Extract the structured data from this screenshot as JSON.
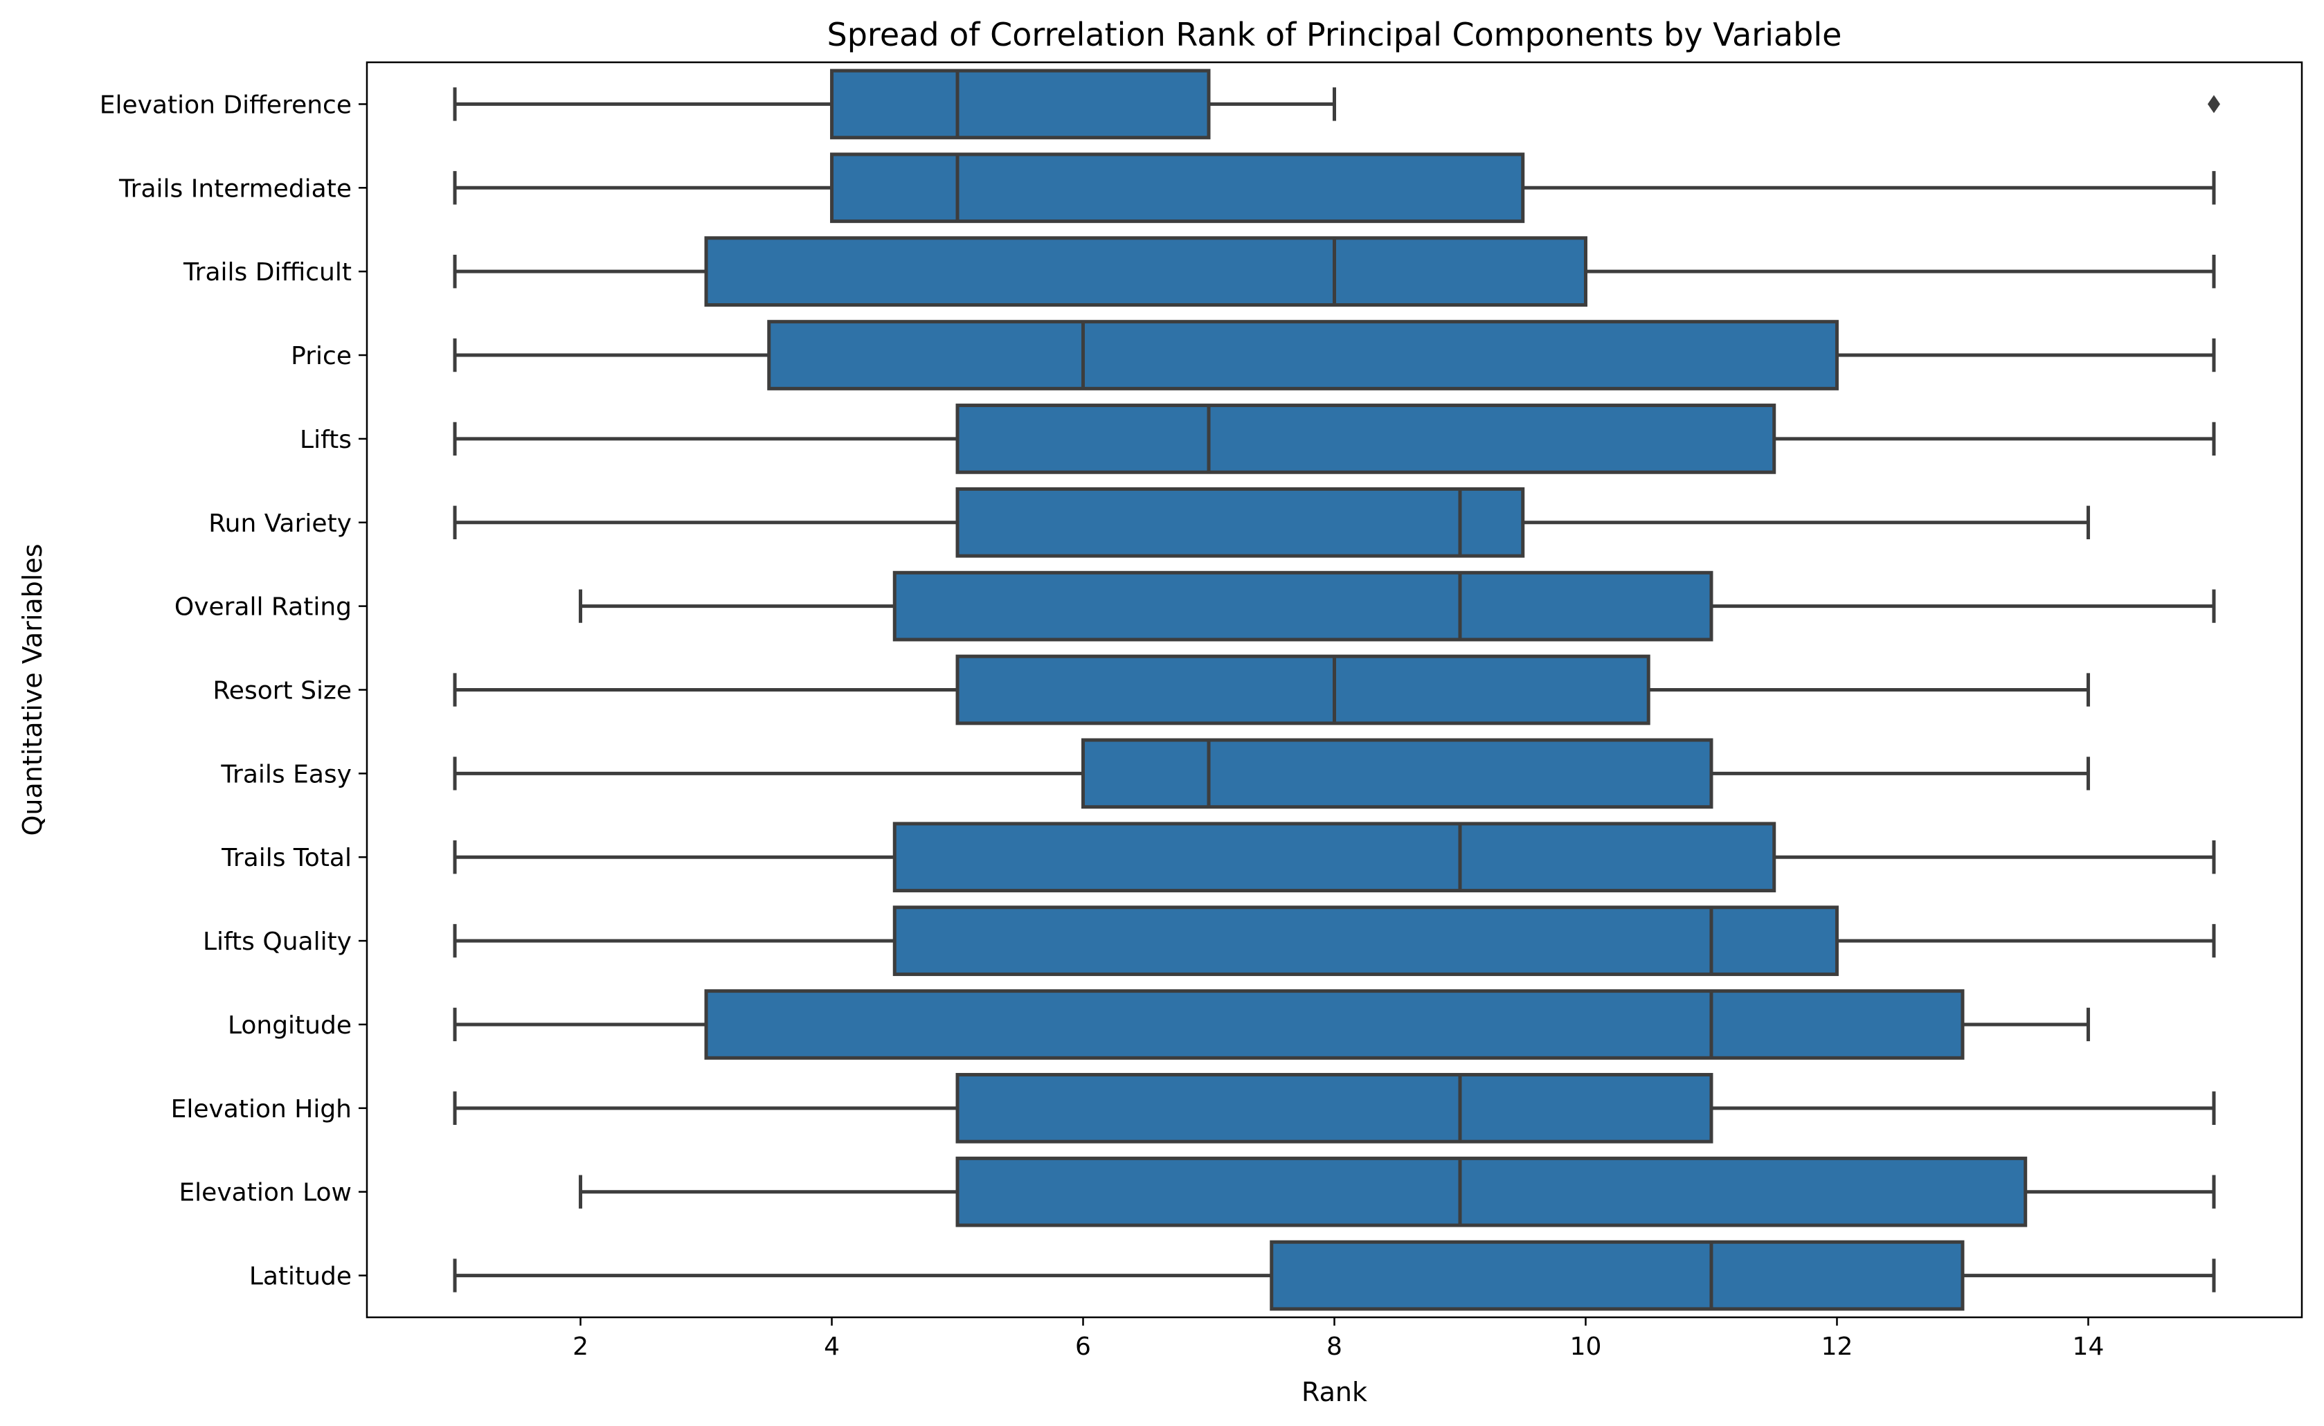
{
  "chart_data": {
    "type": "box",
    "orientation": "horizontal",
    "title": "Spread of Correlation Rank of Principal Components by Variable",
    "xlabel": "Rank",
    "ylabel": "Quantitative Variables",
    "xlim": [
      0.3,
      15.7
    ],
    "xticks": [
      2,
      4,
      6,
      8,
      10,
      12,
      14
    ],
    "grid": false,
    "legend": "none",
    "box_color": "#2f72a7",
    "line_color": "#3d3d3d",
    "categories": [
      "Elevation Difference",
      "Trails Intermediate",
      "Trails Difficult",
      "Price",
      "Lifts",
      "Run Variety",
      "Overall Rating",
      "Resort Size",
      "Trails Easy",
      "Trails Total",
      "Lifts Quality",
      "Longitude",
      "Elevation High",
      "Elevation Low",
      "Latitude"
    ],
    "boxes": [
      {
        "label": "Elevation Difference",
        "whislo": 1,
        "q1": 4,
        "med": 5,
        "q3": 7,
        "whishi": 8,
        "fliers": [
          15
        ]
      },
      {
        "label": "Trails Intermediate",
        "whislo": 1,
        "q1": 4,
        "med": 5,
        "q3": 9.5,
        "whishi": 15,
        "fliers": []
      },
      {
        "label": "Trails Difficult",
        "whislo": 1,
        "q1": 3,
        "med": 8,
        "q3": 10,
        "whishi": 15,
        "fliers": []
      },
      {
        "label": "Price",
        "whislo": 1,
        "q1": 3.5,
        "med": 6,
        "q3": 12,
        "whishi": 15,
        "fliers": []
      },
      {
        "label": "Lifts",
        "whislo": 1,
        "q1": 5,
        "med": 7,
        "q3": 11.5,
        "whishi": 15,
        "fliers": []
      },
      {
        "label": "Run Variety",
        "whislo": 1,
        "q1": 5,
        "med": 9,
        "q3": 9.5,
        "whishi": 14,
        "fliers": []
      },
      {
        "label": "Overall Rating",
        "whislo": 2,
        "q1": 4.5,
        "med": 9,
        "q3": 11,
        "whishi": 15,
        "fliers": []
      },
      {
        "label": "Resort Size",
        "whislo": 1,
        "q1": 5,
        "med": 8,
        "q3": 10.5,
        "whishi": 14,
        "fliers": []
      },
      {
        "label": "Trails Easy",
        "whislo": 1,
        "q1": 6,
        "med": 7,
        "q3": 11,
        "whishi": 14,
        "fliers": []
      },
      {
        "label": "Trails Total",
        "whislo": 1,
        "q1": 4.5,
        "med": 9,
        "q3": 11.5,
        "whishi": 15,
        "fliers": []
      },
      {
        "label": "Lifts Quality",
        "whislo": 1,
        "q1": 4.5,
        "med": 11,
        "q3": 12,
        "whishi": 15,
        "fliers": []
      },
      {
        "label": "Longitude",
        "whislo": 1,
        "q1": 3,
        "med": 11,
        "q3": 13,
        "whishi": 14,
        "fliers": []
      },
      {
        "label": "Elevation High",
        "whislo": 1,
        "q1": 5,
        "med": 9,
        "q3": 11,
        "whishi": 15,
        "fliers": []
      },
      {
        "label": "Elevation Low",
        "whislo": 2,
        "q1": 5,
        "med": 9,
        "q3": 13.5,
        "whishi": 15,
        "fliers": []
      },
      {
        "label": "Latitude",
        "whislo": 1,
        "q1": 7.5,
        "med": 11,
        "q3": 13,
        "whishi": 15,
        "fliers": []
      }
    ]
  }
}
